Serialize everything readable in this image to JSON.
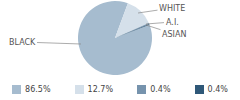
{
  "chart_data": {
    "type": "pie",
    "categories": [
      "BLACK",
      "WHITE",
      "A.I.",
      "ASIAN"
    ],
    "values": [
      86.5,
      12.7,
      0.4,
      0.4
    ],
    "value_labels": [
      "86.5%",
      "12.7%",
      "0.4%",
      "0.4%"
    ],
    "colors": [
      "#a6bccf",
      "#d5e0ea",
      "#7693ad",
      "#2f5878"
    ],
    "legend": "bottom"
  }
}
